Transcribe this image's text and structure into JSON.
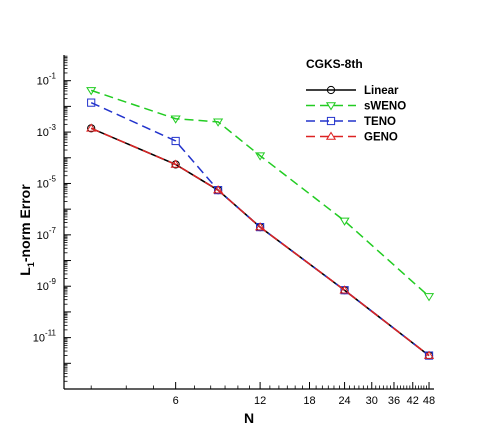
{
  "chart_data": {
    "type": "line",
    "legend_title": "CGKS-8th",
    "xlabel": "N",
    "ylabel": "L1-norm Error",
    "x_scale": "log",
    "y_scale": "log",
    "xlim": [
      2.4,
      50
    ],
    "ylim": [
      1e-13,
      1
    ],
    "x_ticks": [
      6,
      12,
      18,
      24,
      30,
      36,
      42,
      48
    ],
    "y_ticks": [
      {
        "value": 0.1,
        "mantissa": "10",
        "exponent": "-1"
      },
      {
        "value": 0.001,
        "mantissa": "10",
        "exponent": "-3"
      },
      {
        "value": 1e-05,
        "mantissa": "10",
        "exponent": "-5"
      },
      {
        "value": 1e-07,
        "mantissa": "10",
        "exponent": "-7"
      },
      {
        "value": 1e-09,
        "mantissa": "10",
        "exponent": "-9"
      },
      {
        "value": 1e-11,
        "mantissa": "10",
        "exponent": "-11"
      }
    ],
    "legend_position": "top-right",
    "grid": false,
    "series": [
      {
        "name": "Linear",
        "color": "#000000",
        "dash": "solid",
        "marker": "circle",
        "x": [
          3,
          6,
          8.5,
          12,
          24,
          48
        ],
        "y": [
          0.0014,
          5.5e-05,
          5.5e-06,
          2e-07,
          7e-10,
          2e-12
        ]
      },
      {
        "name": "sWENO",
        "color": "#22cc22",
        "dash": "dashed",
        "marker": "triangle-down",
        "x": [
          3,
          6,
          8.5,
          12,
          24,
          48
        ],
        "y": [
          0.042,
          0.0033,
          0.0025,
          0.00012,
          3.5e-07,
          4e-10
        ]
      },
      {
        "name": "TENO",
        "color": "#2233cc",
        "dash": "dashed",
        "marker": "square",
        "x": [
          3,
          6,
          8.5,
          12,
          24,
          48
        ],
        "y": [
          0.014,
          0.00045,
          5.5e-06,
          2e-07,
          7e-10,
          2e-12
        ]
      },
      {
        "name": "GENO",
        "color": "#dd2222",
        "dash": "dashed",
        "marker": "triangle-up",
        "x": [
          3,
          6,
          8.5,
          12,
          24,
          48
        ],
        "y": [
          0.0014,
          5.5e-05,
          5.5e-06,
          2e-07,
          7e-10,
          2e-12
        ]
      }
    ]
  }
}
